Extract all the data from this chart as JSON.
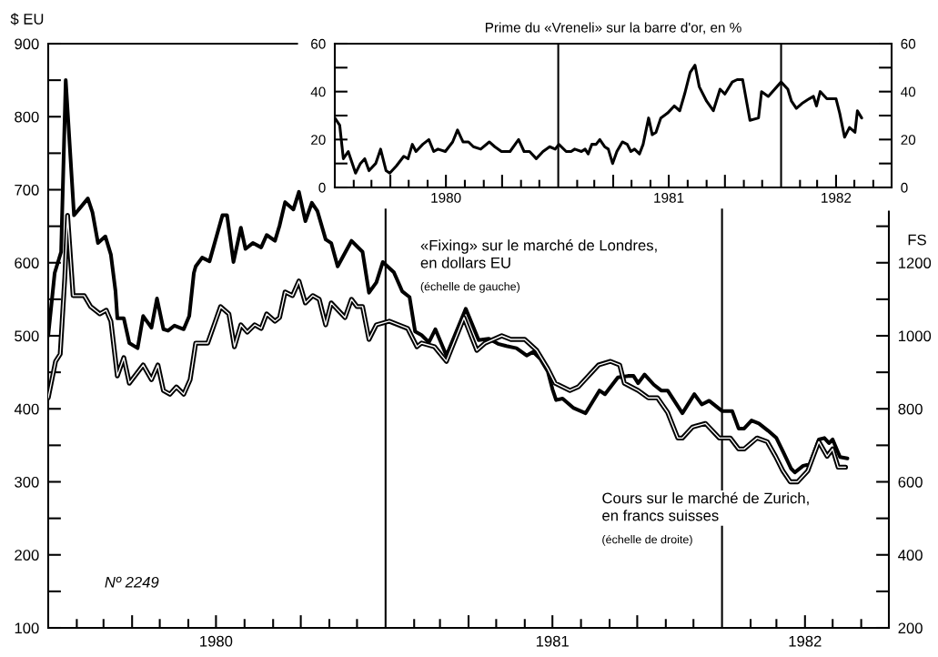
{
  "chart_data": [
    {
      "type": "line",
      "ylabel": "$ EU",
      "y2label": "FS",
      "xlim": [
        "1980-01",
        "1982-07"
      ],
      "xticks": [
        {
          "value": "1980-02",
          "label": null
        },
        {
          "value": "1980-03",
          "label": null
        },
        {
          "value": "1980-04",
          "label": null
        },
        {
          "value": "1980-05",
          "label": null
        },
        {
          "value": "1980-06",
          "label": null
        },
        {
          "value": "1980-07",
          "label": "1980"
        },
        {
          "value": "1980-08",
          "label": null
        },
        {
          "value": "1980-09",
          "label": null
        },
        {
          "value": "1980-10",
          "label": null
        },
        {
          "value": "1980-11",
          "label": null
        },
        {
          "value": "1980-12",
          "label": null
        },
        {
          "value": "1981-02",
          "label": null
        },
        {
          "value": "1981-03",
          "label": null
        },
        {
          "value": "1981-04",
          "label": null
        },
        {
          "value": "1981-05",
          "label": null
        },
        {
          "value": "1981-06",
          "label": null
        },
        {
          "value": "1981-07",
          "label": "1981"
        },
        {
          "value": "1981-08",
          "label": null
        },
        {
          "value": "1981-09",
          "label": null
        },
        {
          "value": "1981-10",
          "label": null
        },
        {
          "value": "1981-11",
          "label": null
        },
        {
          "value": "1981-12",
          "label": null
        },
        {
          "value": "1982-02",
          "label": null
        },
        {
          "value": "1982-03",
          "label": null
        },
        {
          "value": "1982-04",
          "label": "1982"
        },
        {
          "value": "1982-05",
          "label": null
        },
        {
          "value": "1982-06",
          "label": null
        }
      ],
      "ylim": [
        100,
        900
      ],
      "yticks": [
        100,
        {
          "value": 150,
          "label": null
        },
        200,
        {
          "value": 250,
          "label": null
        },
        300,
        {
          "value": 350,
          "label": null
        },
        400,
        {
          "value": 450,
          "label": null
        },
        500,
        {
          "value": 550,
          "label": null
        },
        600,
        {
          "value": 650,
          "label": null
        },
        700,
        {
          "value": 750,
          "label": null
        },
        800,
        {
          "value": 850,
          "label": null
        },
        900
      ],
      "y2lim": [
        200,
        1800
      ],
      "y2ticks": [
        200,
        {
          "value": 300,
          "label": null
        },
        400,
        {
          "value": 500,
          "label": null
        },
        600,
        {
          "value": 700,
          "label": null
        },
        800,
        {
          "value": 900,
          "label": null
        },
        1000,
        {
          "value": 1100,
          "label": null
        },
        1200,
        {
          "value": 1300,
          "label": null
        }
      ],
      "ref_lines": [
        {
          "axis": "x",
          "value": "1981-01-01"
        },
        {
          "axis": "x",
          "value": "1982-01-01"
        }
      ],
      "annotations": [
        "(échelle de gauche)",
        "(échelle de droite)",
        "Nº 2249"
      ],
      "series": [
        {
          "name": "«Fixing» sur le marché de Londres,\nen dollars EU",
          "color": "#000000",
          "x": [
            "1980-01-01",
            "1980-01-08",
            "1980-01-15",
            "1980-01-20",
            "1980-01-29",
            "1980-02-13",
            "1980-02-18",
            "1980-02-24",
            "1980-03-03",
            "1980-03-09",
            "1980-03-14",
            "1980-03-16",
            "1980-03-23",
            "1980-03-29",
            "1980-04-07",
            "1980-04-13",
            "1980-04-22",
            "1980-04-28",
            "1980-05-05",
            "1980-05-10",
            "1980-05-17",
            "1980-05-27",
            "1980-06-02",
            "1980-06-07",
            "1980-06-09",
            "1980-06-16",
            "1980-06-24",
            "1980-07-08",
            "1980-07-13",
            "1980-07-20",
            "1980-07-28",
            "1980-08-02",
            "1980-08-10",
            "1980-08-19",
            "1980-08-25",
            "1980-09-03",
            "1980-09-08",
            "1980-09-14",
            "1980-09-23",
            "1980-09-29",
            "1980-10-06",
            "1980-10-13",
            "1980-10-19",
            "1980-10-28",
            "1980-11-03",
            "1980-11-10",
            "1980-11-25",
            "1980-12-07",
            "1980-12-14",
            "1980-12-22",
            "1980-12-29",
            "1981-01-10",
            "1981-01-19",
            "1981-01-27",
            "1981-02-02",
            "1981-02-09",
            "1981-02-17",
            "1981-02-24",
            "1981-03-08",
            "1981-03-29",
            "1981-04-12",
            "1981-04-23",
            "1981-05-03",
            "1981-05-12",
            "1981-05-23",
            "1981-06-03",
            "1981-06-10",
            "1981-06-18",
            "1981-06-26",
            "1981-07-01",
            "1981-07-05",
            "1981-07-12",
            "1981-07-24",
            "1981-08-06",
            "1981-08-21",
            "1981-08-27",
            "1981-09-10",
            "1981-09-21",
            "1981-09-27",
            "1981-10-02",
            "1981-10-09",
            "1981-10-19",
            "1981-10-27",
            "1981-11-03",
            "1981-11-19",
            "1981-12-02",
            "1981-12-10",
            "1981-12-18",
            "1982-01-01",
            "1982-01-12",
            "1982-01-19",
            "1982-01-25",
            "1982-02-02",
            "1982-02-10",
            "1982-02-20",
            "1982-03-01",
            "1982-03-08",
            "1982-03-17",
            "1982-03-21",
            "1982-03-30",
            "1982-04-06",
            "1982-04-16",
            "1982-04-22",
            "1982-04-27",
            "1982-05-01",
            "1982-05-09",
            "1982-05-17"
          ],
          "values": [
            500,
            586,
            615,
            850,
            665,
            688,
            669,
            627,
            636,
            611,
            561,
            524,
            524,
            490,
            483,
            527,
            511,
            551,
            509,
            507,
            514,
            509,
            527,
            586,
            595,
            607,
            602,
            665,
            665,
            601,
            648,
            619,
            627,
            621,
            638,
            630,
            651,
            683,
            673,
            697,
            657,
            682,
            671,
            632,
            627,
            595,
            630,
            615,
            559,
            573,
            601,
            587,
            561,
            553,
            506,
            501,
            491,
            509,
            473,
            537,
            494,
            496,
            489,
            486,
            483,
            473,
            478,
            468,
            451,
            427,
            412,
            414,
            401,
            394,
            425,
            420,
            443,
            445,
            445,
            435,
            447,
            433,
            425,
            425,
            394,
            420,
            406,
            411,
            397,
            397,
            373,
            373,
            384,
            380,
            370,
            360,
            342,
            318,
            313,
            322,
            324,
            358,
            360,
            353,
            358,
            334,
            332
          ]
        },
        {
          "name": "Cours sur le marché de Zurich,\nen francs suisses",
          "color": "#000000",
          "axis": "y2",
          "x": [
            "1980-01-01",
            "1980-01-09",
            "1980-01-14",
            "1980-01-19",
            "1980-01-22",
            "1980-01-28",
            "1980-02-09",
            "1980-02-16",
            "1980-02-26",
            "1980-03-04",
            "1980-03-09",
            "1980-03-16",
            "1980-03-23",
            "1980-03-29",
            "1980-04-13",
            "1980-04-22",
            "1980-04-29",
            "1980-05-05",
            "1980-05-12",
            "1980-05-19",
            "1980-05-27",
            "1980-06-03",
            "1980-06-09",
            "1980-06-22",
            "1980-07-06",
            "1980-07-15",
            "1980-07-21",
            "1980-07-28",
            "1980-08-04",
            "1980-08-12",
            "1980-08-19",
            "1980-08-25",
            "1980-09-03",
            "1980-09-08",
            "1980-09-14",
            "1980-09-22",
            "1980-09-29",
            "1980-10-06",
            "1980-10-14",
            "1980-10-21",
            "1980-10-28",
            "1980-11-03",
            "1980-11-18",
            "1980-11-25",
            "1980-12-01",
            "1980-12-07",
            "1980-12-14",
            "1980-12-22",
            "1981-01-05",
            "1981-01-15",
            "1981-01-25",
            "1981-02-04",
            "1981-02-09",
            "1981-02-23",
            "1981-03-08",
            "1981-03-27",
            "1981-04-10",
            "1981-04-19",
            "1981-05-07",
            "1981-05-17",
            "1981-06-01",
            "1981-06-14",
            "1981-06-26",
            "1981-07-04",
            "1981-07-20",
            "1981-07-29",
            "1981-08-20",
            "1981-09-02",
            "1981-09-12",
            "1981-09-17",
            "1981-10-02",
            "1981-10-13",
            "1981-10-23",
            "1981-11-03",
            "1981-11-14",
            "1981-11-19",
            "1981-11-30",
            "1981-12-14",
            "1981-12-29",
            "1982-01-10",
            "1982-01-19",
            "1982-01-25",
            "1982-02-08",
            "1982-02-19",
            "1982-02-28",
            "1982-03-08",
            "1982-03-16",
            "1982-03-24",
            "1982-04-04",
            "1982-04-16",
            "1982-04-25",
            "1982-05-01",
            "1982-05-07",
            "1982-05-15"
          ],
          "values": [
            830,
            930,
            950,
            1160,
            1330,
            1110,
            1110,
            1080,
            1060,
            1070,
            1040,
            890,
            940,
            870,
            920,
            880,
            920,
            850,
            840,
            860,
            840,
            880,
            980,
            980,
            1080,
            1060,
            970,
            1030,
            1010,
            1030,
            1020,
            1060,
            1040,
            1050,
            1120,
            1110,
            1150,
            1090,
            1110,
            1100,
            1030,
            1090,
            1050,
            1100,
            1080,
            1080,
            990,
            1030,
            1040,
            1030,
            1020,
            970,
            980,
            970,
            930,
            1050,
            960,
            980,
            1000,
            990,
            990,
            960,
            910,
            870,
            850,
            860,
            920,
            930,
            920,
            870,
            850,
            830,
            830,
            790,
            720,
            720,
            750,
            760,
            720,
            720,
            690,
            690,
            720,
            710,
            670,
            630,
            600,
            600,
            630,
            710,
            670,
            690,
            640,
            640
          ]
        }
      ]
    },
    {
      "type": "line",
      "title": "Prime du «Vreneli» sur la barre d'or, en %",
      "xlim": [
        "1980-01",
        "1982-07"
      ],
      "xticks": [
        {
          "value": "1980-02",
          "label": null
        },
        {
          "value": "1980-03",
          "label": null
        },
        {
          "value": "1980-04",
          "label": null
        },
        {
          "value": "1980-05",
          "label": null
        },
        {
          "value": "1980-06",
          "label": null
        },
        {
          "value": "1980-07",
          "label": "1980"
        },
        {
          "value": "1980-08",
          "label": null
        },
        {
          "value": "1980-09",
          "label": null
        },
        {
          "value": "1980-10",
          "label": null
        },
        {
          "value": "1980-11",
          "label": null
        },
        {
          "value": "1980-12",
          "label": null
        },
        {
          "value": "1981-02",
          "label": null
        },
        {
          "value": "1981-03",
          "label": null
        },
        {
          "value": "1981-04",
          "label": null
        },
        {
          "value": "1981-05",
          "label": null
        },
        {
          "value": "1981-06",
          "label": null
        },
        {
          "value": "1981-07",
          "label": "1981"
        },
        {
          "value": "1981-08",
          "label": null
        },
        {
          "value": "1981-09",
          "label": null
        },
        {
          "value": "1981-10",
          "label": null
        },
        {
          "value": "1981-11",
          "label": null
        },
        {
          "value": "1981-12",
          "label": null
        },
        {
          "value": "1982-02",
          "label": null
        },
        {
          "value": "1982-03",
          "label": null
        },
        {
          "value": "1982-04",
          "label": "1982"
        },
        {
          "value": "1982-05",
          "label": null
        },
        {
          "value": "1982-06",
          "label": null
        }
      ],
      "ylim": [
        0,
        60
      ],
      "yticks": [
        0,
        {
          "value": 10,
          "label": null
        },
        20,
        {
          "value": 30,
          "label": null
        },
        40,
        {
          "value": 50,
          "label": null
        },
        60
      ],
      "y2lim": [
        0,
        60
      ],
      "y2ticks": [
        0,
        {
          "value": 10,
          "label": null
        },
        20,
        {
          "value": 30,
          "label": null
        },
        40,
        {
          "value": 50,
          "label": null
        },
        60
      ],
      "ref_lines": [
        {
          "axis": "x",
          "value": "1981-01-01"
        },
        {
          "axis": "x",
          "value": "1982-01-01"
        }
      ],
      "series": [
        {
          "color": "#000000",
          "x": [
            "1980-01-01",
            "1980-01-09",
            "1980-01-15",
            "1980-01-23",
            "1980-02-04",
            "1980-02-12",
            "1980-02-19",
            "1980-02-26",
            "1980-03-08",
            "1980-03-16",
            "1980-03-25",
            "1980-03-31",
            "1980-04-11",
            "1980-04-23",
            "1980-04-30",
            "1980-05-07",
            "1980-05-13",
            "1980-05-24",
            "1980-06-03",
            "1980-06-11",
            "1980-06-18",
            "1980-06-30",
            "1980-07-12",
            "1980-07-20",
            "1980-07-29",
            "1980-08-07",
            "1980-08-15",
            "1980-08-27",
            "1980-09-10",
            "1980-09-19",
            "1980-09-30",
            "1980-10-14",
            "1980-10-28",
            "1980-11-06",
            "1980-11-15",
            "1980-11-26",
            "1980-12-07",
            "1980-12-18",
            "1980-12-27",
            "1981-01-02",
            "1981-01-14",
            "1981-01-22",
            "1981-01-28",
            "1981-02-08",
            "1981-02-14",
            "1981-02-19",
            "1981-02-25",
            "1981-03-04",
            "1981-03-10",
            "1981-03-18",
            "1981-03-24",
            "1981-03-31",
            "1981-04-07",
            "1981-04-16",
            "1981-04-24",
            "1981-04-30",
            "1981-05-06",
            "1981-05-14",
            "1981-05-20",
            "1981-05-29",
            "1981-06-04",
            "1981-06-10",
            "1981-06-18",
            "1981-06-29",
            "1981-07-10",
            "1981-07-19",
            "1981-07-27",
            "1981-08-05",
            "1981-08-13",
            "1981-08-20",
            "1981-09-01",
            "1981-09-12",
            "1981-09-23",
            "1981-10-01",
            "1981-10-13",
            "1981-10-21",
            "1981-10-30",
            "1981-11-11",
            "1981-11-25",
            "1981-11-30",
            "1981-12-11",
            "1982-01-01",
            "1982-01-12",
            "1982-01-18",
            "1982-01-26",
            "1982-02-04",
            "1982-02-16",
            "1982-02-23",
            "1982-02-28",
            "1982-03-06",
            "1982-03-17",
            "1982-04-01",
            "1982-04-07",
            "1982-04-15",
            "1982-04-23",
            "1982-05-02",
            "1982-05-06",
            "1982-05-13"
          ],
          "values": [
            29,
            26,
            12,
            15,
            6,
            10,
            12,
            7,
            10,
            16,
            7,
            6,
            9,
            13,
            12,
            18,
            15,
            18,
            20,
            15,
            16,
            15,
            19,
            24,
            19,
            19,
            17,
            16,
            19,
            17,
            15,
            15,
            20,
            15,
            15,
            12,
            15,
            17,
            16,
            18,
            15,
            15,
            16,
            15,
            16,
            14,
            18,
            18,
            20,
            17,
            16,
            10,
            15,
            19,
            18,
            15,
            16,
            14,
            18,
            29,
            22,
            23,
            29,
            31,
            34,
            32,
            39,
            48,
            51,
            42,
            36,
            32,
            41,
            39,
            44,
            45,
            45,
            28,
            29,
            40,
            38,
            44,
            41,
            36,
            33,
            35,
            37,
            38,
            34,
            40,
            37,
            37,
            31,
            21,
            25,
            23,
            32,
            29
          ]
        }
      ]
    }
  ]
}
